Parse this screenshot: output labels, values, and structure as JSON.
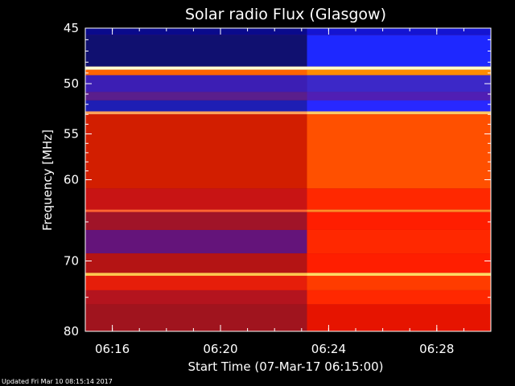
{
  "chart_data": {
    "type": "heatmap",
    "title": "Solar radio Flux (Glasgow)",
    "ylabel": "Frequency [MHz]",
    "xlabel": "Start Time (07-Mar-17 06:15:00)",
    "y_scale": "log",
    "ylim": [
      45,
      80
    ],
    "y_ticks": [
      {
        "value": 45,
        "label": "45"
      },
      {
        "value": 50,
        "label": "50"
      },
      {
        "value": 55,
        "label": "55"
      },
      {
        "value": 60,
        "label": "60"
      },
      {
        "value": 70,
        "label": "70"
      },
      {
        "value": 80,
        "label": "80"
      }
    ],
    "xlim": [
      "06:15:00",
      "06:30:00"
    ],
    "x_ticks": [
      {
        "value": "06:16",
        "label": "06:16"
      },
      {
        "value": "06:20",
        "label": "06:20"
      },
      {
        "value": "06:24",
        "label": "06:24"
      },
      {
        "value": "06:28",
        "label": "06:28"
      }
    ],
    "change_time": "06:23:12",
    "bands": [
      {
        "range": [
          45,
          45.6
        ],
        "before": "#0a0a8c",
        "after": "#1414d2"
      },
      {
        "range": [
          45.6,
          48.4
        ],
        "before": "#101070",
        "after": "#1e28ff"
      },
      {
        "range": [
          48.4,
          48.7
        ],
        "before": "#ffffd2",
        "after": "#ffffc8"
      },
      {
        "range": [
          48.7,
          49.2
        ],
        "before": "#ff6400",
        "after": "#ff8c00"
      },
      {
        "range": [
          49.2,
          50.8
        ],
        "before": "#3c1eb4",
        "after": "#3c28c8"
      },
      {
        "range": [
          50.8,
          51.6
        ],
        "before": "#5a1e8c",
        "after": "#501eb4"
      },
      {
        "range": [
          51.6,
          52.7
        ],
        "before": "#1e1eb4",
        "after": "#2828ff"
      },
      {
        "range": [
          52.7,
          53.0
        ],
        "before": "#ffa05a",
        "after": "#ffc864"
      },
      {
        "range": [
          53.0,
          61.0
        ],
        "before": "#d21e00",
        "after": "#ff5000"
      },
      {
        "range": [
          61.0,
          63.5
        ],
        "before": "#c81414",
        "after": "#ff2800"
      },
      {
        "range": [
          63.5,
          63.8
        ],
        "before": "#ff6432",
        "after": "#ff8c28"
      },
      {
        "range": [
          63.8,
          66.0
        ],
        "before": "#a01428",
        "after": "#ff1e00"
      },
      {
        "range": [
          66.0,
          69.0
        ],
        "before": "#64147a",
        "after": "#ff2800"
      },
      {
        "range": [
          69.0,
          71.6
        ],
        "before": "#b41414",
        "after": "#ff1e00"
      },
      {
        "range": [
          71.6,
          72.0
        ],
        "before": "#ffc850",
        "after": "#ffdc64"
      },
      {
        "range": [
          72.0,
          74.0
        ],
        "before": "#e61e0a",
        "after": "#ff3c00"
      },
      {
        "range": [
          74.0,
          76.0
        ],
        "before": "#b4141e",
        "after": "#ff2800"
      },
      {
        "range": [
          76.0,
          80.0
        ],
        "before": "#a0141e",
        "after": "#e61400"
      }
    ]
  },
  "footer": "Updated Fri Mar 10 08:15:14 2017"
}
